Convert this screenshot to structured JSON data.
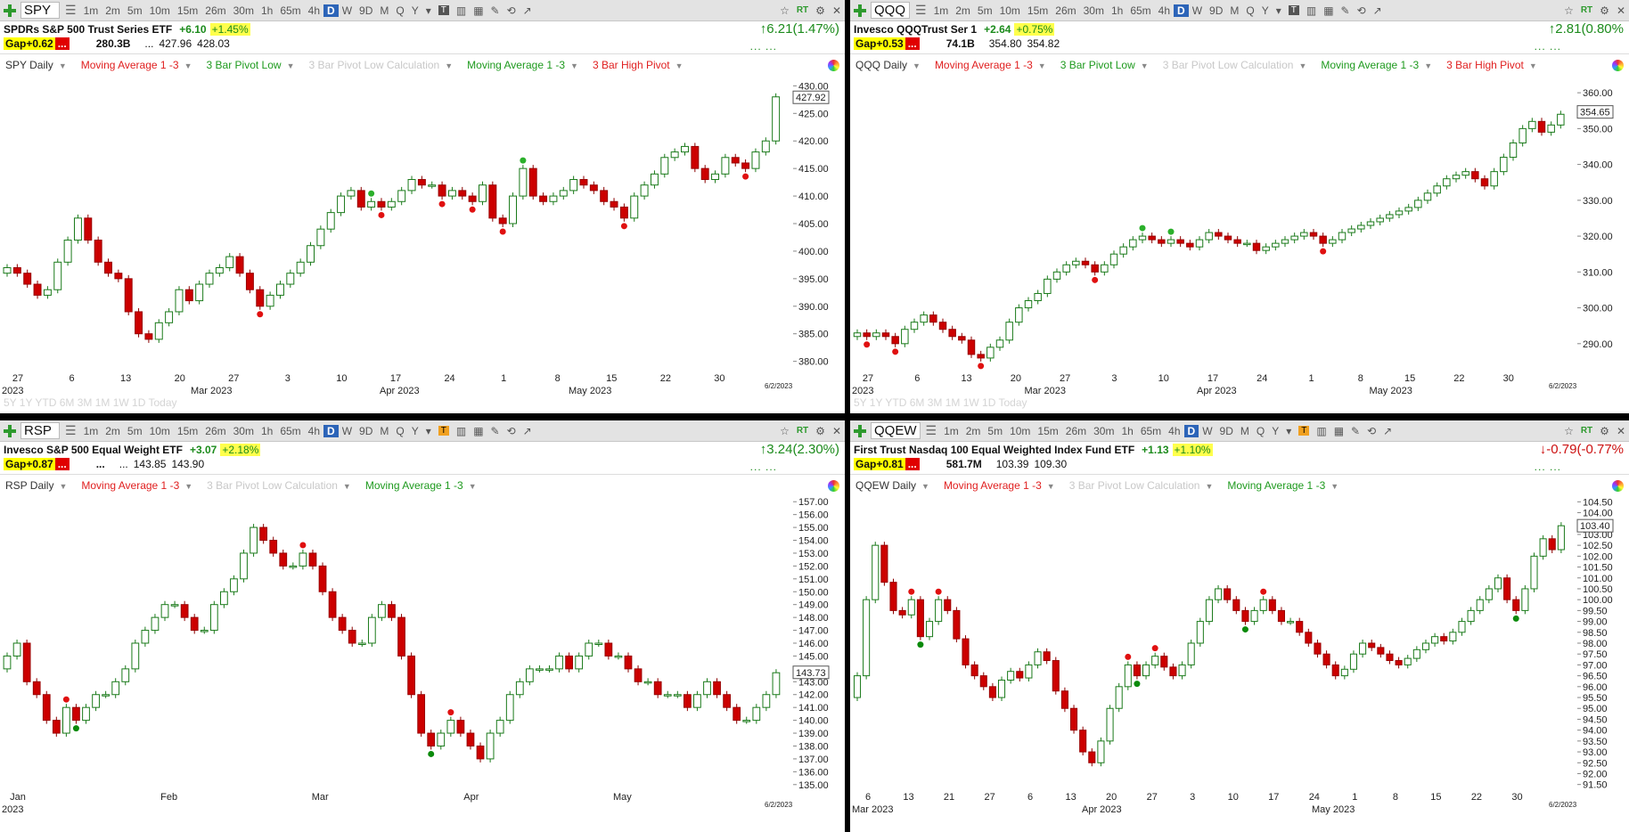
{
  "panels": [
    {
      "symbol": "SPY",
      "timeframes": [
        "1m",
        "2m",
        "5m",
        "10m",
        "15m",
        "26m",
        "30m",
        "1h",
        "65m",
        "4h",
        "D",
        "W",
        "9D",
        "M",
        "Q",
        "Y"
      ],
      "active_tf": "D",
      "t_icon": "T",
      "name": "SPDRs S&P 500 Trust Series ETF",
      "change": "+6.10",
      "change_pct": "+1.45%",
      "gap": "Gap+0.62",
      "gap_dots": "...",
      "volume": "280.3B",
      "ellipsis": "...",
      "low": "427.96",
      "high": "428.03",
      "big_change": "6.21(1.47%)",
      "big_dir": "up",
      "end_dots": "... ...",
      "chart_label": "SPY Daily",
      "indicators": [
        {
          "label": "Moving Average 1 -3",
          "color": "red"
        },
        {
          "label": "3 Bar Pivot Low",
          "color": "green"
        },
        {
          "label": "3 Bar Pivot Low Calculation",
          "color": "grey"
        },
        {
          "label": "Moving Average 1 -3",
          "color": "green"
        },
        {
          "label": "3 Bar High Pivot",
          "color": "red"
        }
      ],
      "price_label": "427.92",
      "y_ticks": [
        "430.00",
        "425.00",
        "420.00",
        "415.00",
        "410.00",
        "405.00",
        "400.00",
        "395.00",
        "390.00",
        "385.00",
        "380.00"
      ],
      "x_ticks": [
        "27",
        "6",
        "13",
        "20",
        "27",
        "3",
        "10",
        "17",
        "24",
        "1",
        "8",
        "15",
        "22",
        "30"
      ],
      "x_sub": [
        "2023",
        "Mar 2023",
        "Apr 2023",
        "May 2023"
      ],
      "date_label": "6/2/2023",
      "range_buttons": "5Y 1Y YTD 6M 3M 1M 1W 1D Today"
    },
    {
      "symbol": "QQQ",
      "timeframes": [
        "1m",
        "2m",
        "5m",
        "10m",
        "15m",
        "26m",
        "30m",
        "1h",
        "65m",
        "4h",
        "D",
        "W",
        "9D",
        "M",
        "Q",
        "Y"
      ],
      "active_tf": "D",
      "t_icon": "T",
      "name": "Invesco QQQTrust Ser 1",
      "change": "+2.64",
      "change_pct": "+0.75%",
      "gap": "Gap+0.53",
      "gap_dots": "...",
      "volume": "74.1B",
      "ellipsis": "",
      "low": "354.80",
      "high": "354.82",
      "big_change": "2.81(0.80%",
      "big_dir": "up",
      "end_dots": "... ...",
      "chart_label": "QQQ Daily",
      "indicators": [
        {
          "label": "Moving Average 1 -3",
          "color": "red"
        },
        {
          "label": "3 Bar Pivot Low",
          "color": "green"
        },
        {
          "label": "3 Bar Pivot Low Calculation",
          "color": "grey"
        },
        {
          "label": "Moving Average 1 -3",
          "color": "green"
        },
        {
          "label": "3 Bar High Pivot",
          "color": "red"
        }
      ],
      "price_label": "354.65",
      "y_ticks": [
        "360.00",
        "350.00",
        "340.00",
        "330.00",
        "320.00",
        "310.00",
        "300.00",
        "290.00"
      ],
      "x_ticks": [
        "27",
        "6",
        "13",
        "20",
        "27",
        "3",
        "10",
        "17",
        "24",
        "1",
        "8",
        "15",
        "22",
        "30"
      ],
      "x_sub": [
        "2023",
        "Mar 2023",
        "Apr 2023",
        "May 2023"
      ],
      "date_label": "6/2/2023",
      "range_buttons": "5Y 1Y YTD 6M 3M 1M 1W 1D Today"
    },
    {
      "symbol": "RSP",
      "timeframes": [
        "1m",
        "2m",
        "5m",
        "10m",
        "15m",
        "26m",
        "30m",
        "1h",
        "65m",
        "4h",
        "D",
        "W",
        "9D",
        "M",
        "Q",
        "Y"
      ],
      "active_tf": "D",
      "t_icon": "T",
      "name": "Invesco S&P 500 Equal Weight ETF",
      "change": "+3.07",
      "change_pct": "+2.18%",
      "gap": "Gap+0.87",
      "gap_dots": "...",
      "volume": "...",
      "ellipsis": "...",
      "low": "143.85",
      "high": "143.90",
      "big_change": "3.24(2.30%)",
      "big_dir": "up",
      "end_dots": "... ...",
      "chart_label": "RSP Daily",
      "indicators": [
        {
          "label": "Moving Average 1 -3",
          "color": "red"
        },
        {
          "label": "3 Bar Pivot Low Calculation",
          "color": "grey"
        },
        {
          "label": "Moving Average 1 -3",
          "color": "green"
        }
      ],
      "price_label": "143.73",
      "y_ticks": [
        "157.00",
        "156.00",
        "155.00",
        "154.00",
        "153.00",
        "152.00",
        "151.00",
        "150.00",
        "149.00",
        "148.00",
        "147.00",
        "146.00",
        "145.00",
        "144.00",
        "143.00",
        "142.00",
        "141.00",
        "140.00",
        "139.00",
        "138.00",
        "137.00",
        "136.00",
        "135.00"
      ],
      "x_ticks": [
        "Jan",
        "Feb",
        "Mar",
        "Apr",
        "May"
      ],
      "x_sub": [
        "2023"
      ],
      "date_label": "6/2/2023",
      "range_buttons": ""
    },
    {
      "symbol": "QQEW",
      "timeframes": [
        "1m",
        "2m",
        "5m",
        "10m",
        "15m",
        "26m",
        "30m",
        "1h",
        "65m",
        "4h",
        "D",
        "W",
        "9D",
        "M",
        "Q",
        "Y"
      ],
      "active_tf": "D",
      "t_icon": "T",
      "name": "First Trust Nasdaq 100 Equal Weighted Index Fund ETF",
      "change": "+1.13",
      "change_pct": "+1.10%",
      "gap": "Gap+0.81",
      "gap_dots": "...",
      "volume": "581.7M",
      "ellipsis": "",
      "low": "103.39",
      "high": "109.30",
      "big_change": "-0.79(-0.77%",
      "big_dir": "down",
      "end_dots": "... ...",
      "chart_label": "QQEW Daily",
      "indicators": [
        {
          "label": "Moving Average 1 -3",
          "color": "red"
        },
        {
          "label": "3 Bar Pivot Low Calculation",
          "color": "grey"
        },
        {
          "label": "Moving Average 1 -3",
          "color": "green"
        }
      ],
      "price_label": "103.40",
      "y_ticks": [
        "104.50",
        "104.00",
        "103.50",
        "103.00",
        "102.50",
        "102.00",
        "101.50",
        "101.00",
        "100.50",
        "100.00",
        "99.50",
        "99.00",
        "98.50",
        "98.00",
        "97.50",
        "97.00",
        "96.50",
        "96.00",
        "95.50",
        "95.00",
        "94.50",
        "94.00",
        "93.50",
        "93.00",
        "92.50",
        "92.00",
        "91.50"
      ],
      "x_ticks": [
        "6",
        "13",
        "21",
        "27",
        "6",
        "13",
        "20",
        "27",
        "3",
        "10",
        "17",
        "24",
        "1",
        "8",
        "15",
        "22",
        "30"
      ],
      "x_sub": [
        "Mar 2023",
        "Apr 2023",
        "May 2023"
      ],
      "date_label": "6/2/2023",
      "range_buttons": ""
    }
  ],
  "chart_data": [
    {
      "type": "candlestick",
      "title": "SPY Daily",
      "ylim": [
        378,
        432
      ],
      "x_ticks": [
        "27",
        "6",
        "13",
        "20",
        "27",
        "3",
        "10",
        "17",
        "24",
        "1",
        "8",
        "15",
        "22",
        "30"
      ],
      "closes": [
        397,
        396,
        394,
        392,
        393,
        398,
        402,
        406,
        402,
        398,
        396,
        395,
        389,
        385,
        384,
        387,
        389,
        393,
        391,
        394,
        396,
        397,
        399,
        396,
        393,
        390,
        392,
        394,
        396,
        398,
        401,
        404,
        407,
        410,
        411,
        408,
        409,
        408,
        409,
        411,
        413,
        412,
        412,
        410,
        411,
        410,
        409,
        412,
        406,
        405,
        410,
        415,
        410,
        409,
        410,
        411,
        413,
        412,
        411,
        409,
        408,
        406,
        410,
        412,
        414,
        417,
        418,
        419,
        415,
        413,
        414,
        417,
        416,
        415,
        418,
        420,
        428
      ],
      "last": 427.92
    },
    {
      "type": "candlestick",
      "title": "QQQ Daily",
      "ylim": [
        282,
        365
      ],
      "x_ticks": [
        "27",
        "6",
        "13",
        "20",
        "27",
        "3",
        "10",
        "17",
        "24",
        "1",
        "8",
        "15",
        "22",
        "30"
      ],
      "closes": [
        293,
        292,
        293,
        292,
        290,
        294,
        296,
        298,
        296,
        294,
        292,
        291,
        287,
        286,
        289,
        291,
        296,
        300,
        302,
        304,
        308,
        310,
        312,
        313,
        312,
        310,
        312,
        315,
        317,
        319,
        320,
        319,
        318,
        319,
        318,
        317,
        319,
        321,
        320,
        319,
        318,
        318,
        316,
        317,
        318,
        319,
        320,
        321,
        320,
        318,
        319,
        321,
        322,
        323,
        324,
        325,
        326,
        327,
        328,
        330,
        332,
        334,
        336,
        337,
        338,
        336,
        334,
        338,
        342,
        346,
        350,
        352,
        349,
        351,
        354
      ],
      "last": 354.65
    },
    {
      "type": "candlestick",
      "title": "RSP Daily",
      "ylim": [
        134.5,
        157.5
      ],
      "x_ticks": [
        "Jan",
        "Feb",
        "Mar",
        "Apr",
        "May"
      ],
      "closes": [
        145,
        146,
        143,
        142,
        140,
        139,
        141,
        140,
        141,
        142,
        142,
        143,
        144,
        146,
        147,
        148,
        149,
        149,
        148,
        147,
        147,
        149,
        150,
        151,
        153,
        155,
        154,
        153,
        152,
        152,
        153,
        152,
        150,
        148,
        147,
        146,
        146,
        148,
        149,
        148,
        145,
        142,
        139,
        138,
        139,
        140,
        139,
        138,
        137,
        139,
        140,
        142,
        143,
        144,
        144,
        144,
        145,
        144,
        145,
        146,
        146,
        145,
        145,
        144,
        143,
        143,
        142,
        142,
        142,
        141,
        142,
        143,
        142,
        141,
        140,
        140,
        141,
        142,
        143.7
      ],
      "last": 143.73
    },
    {
      "type": "candlestick",
      "title": "QQEW Daily",
      "ylim": [
        91.2,
        104.8
      ],
      "x_ticks": [
        "6",
        "13",
        "21",
        "27",
        "6",
        "13",
        "20",
        "27",
        "3",
        "10",
        "17",
        "24",
        "1",
        "8",
        "15",
        "22",
        "30"
      ],
      "closes": [
        96.5,
        100,
        102.5,
        100.8,
        99.5,
        99.3,
        100,
        98.3,
        99,
        100,
        99.5,
        98.2,
        97,
        96.5,
        96,
        95.5,
        96.3,
        96.7,
        96.4,
        97,
        97.6,
        97.2,
        95.8,
        95,
        94,
        93,
        92.5,
        93.5,
        95,
        96,
        97,
        96.5,
        97,
        97.4,
        96.9,
        96.5,
        97,
        98,
        99,
        100,
        100.5,
        100,
        99.5,
        99,
        99.5,
        100,
        99.5,
        99,
        99,
        98.5,
        98,
        97.5,
        97,
        96.5,
        96.8,
        97.5,
        98,
        97.8,
        97.5,
        97.2,
        97,
        97.3,
        97.7,
        98,
        98.3,
        98.1,
        98.5,
        99,
        99.5,
        100,
        100.5,
        101,
        100,
        99.5,
        100.5,
        102,
        102.8,
        102.3,
        103.4
      ],
      "last": 103.4
    }
  ]
}
